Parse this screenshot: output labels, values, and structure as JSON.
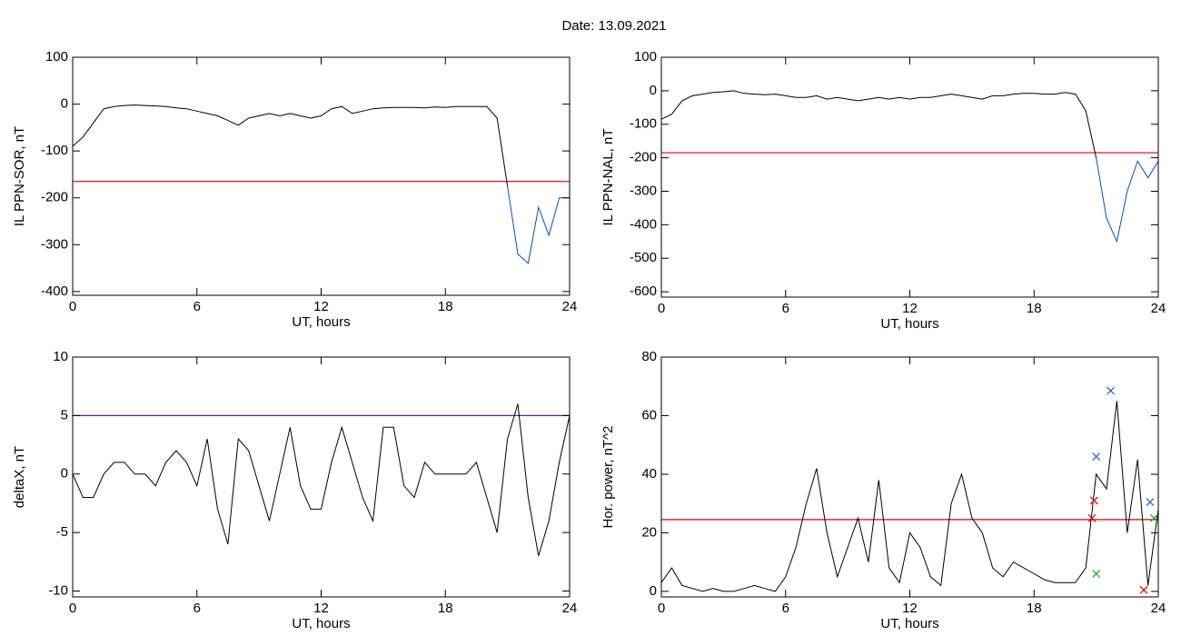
{
  "title": "Date:  13.09.2021",
  "chart_data": [
    {
      "type": "line",
      "xlabel": "UT, hours",
      "ylabel": "IL PPN-SOR, nT",
      "x": [
        0,
        0.5,
        1,
        1.5,
        2,
        2.5,
        3,
        3.5,
        4,
        4.5,
        5,
        5.5,
        6,
        6.5,
        7,
        7.5,
        8,
        8.5,
        9,
        9.5,
        10,
        10.5,
        11,
        11.5,
        12,
        12.5,
        13,
        13.5,
        14,
        14.5,
        15,
        15.5,
        16,
        16.5,
        17,
        17.5,
        18,
        18.5,
        19,
        19.5,
        20,
        20.5,
        21,
        21.5,
        22,
        22.5,
        23,
        23.5,
        24
      ],
      "series": [
        {
          "color": "#000000",
          "values": [
            -90,
            -70,
            -40,
            -10,
            -5,
            -3,
            -2,
            -3,
            -4,
            -5,
            -8,
            -10,
            -15,
            -20,
            -25,
            -35,
            -45,
            -30,
            -25,
            -20,
            -25,
            -20,
            -25,
            -30,
            -25,
            -10,
            -5,
            -20,
            -15,
            -10,
            -8,
            -7,
            -7,
            -7,
            -8,
            -6,
            -7,
            -5,
            -5,
            -5,
            -5,
            -30,
            -175,
            null,
            null,
            null,
            null,
            null,
            null
          ]
        },
        {
          "color": "#0050c8",
          "values": [
            null,
            null,
            null,
            null,
            null,
            null,
            null,
            null,
            null,
            null,
            null,
            null,
            null,
            null,
            null,
            null,
            null,
            null,
            null,
            null,
            null,
            null,
            null,
            null,
            null,
            null,
            null,
            null,
            null,
            null,
            null,
            null,
            null,
            null,
            null,
            null,
            null,
            null,
            null,
            null,
            null,
            null,
            -175,
            -320,
            -340,
            -220,
            -280,
            -200,
            -200
          ]
        }
      ],
      "hline": {
        "value": -165,
        "color": "#e00000"
      },
      "xlim": [
        0,
        24
      ],
      "xticks": [
        0,
        6,
        12,
        18,
        24
      ],
      "ylim": [
        -408,
        100
      ],
      "yticks": [
        100,
        0,
        -100,
        -200,
        -300,
        -400
      ]
    },
    {
      "type": "line",
      "xlabel": "UT, hours",
      "ylabel": "IL PPN-NAL, nT",
      "x": [
        0,
        0.5,
        1,
        1.5,
        2,
        2.5,
        3,
        3.5,
        4,
        4.5,
        5,
        5.5,
        6,
        6.5,
        7,
        7.5,
        8,
        8.5,
        9,
        9.5,
        10,
        10.5,
        11,
        11.5,
        12,
        12.5,
        13,
        13.5,
        14,
        14.5,
        15,
        15.5,
        16,
        16.5,
        17,
        17.5,
        18,
        18.5,
        19,
        19.5,
        20,
        20.5,
        21,
        21.5,
        22,
        22.5,
        23,
        23.5,
        24
      ],
      "series": [
        {
          "color": "#000000",
          "values": [
            -85,
            -70,
            -30,
            -15,
            -10,
            -5,
            -3,
            0,
            -8,
            -10,
            -12,
            -10,
            -15,
            -20,
            -20,
            -15,
            -25,
            -20,
            -25,
            -30,
            -25,
            -20,
            -25,
            -20,
            -25,
            -20,
            -20,
            -15,
            -10,
            -15,
            -20,
            -25,
            -15,
            -15,
            -10,
            -8,
            -8,
            -10,
            -10,
            -5,
            -10,
            -60,
            -200,
            null,
            null,
            null,
            null,
            null,
            null
          ]
        },
        {
          "color": "#0050c8",
          "values": [
            null,
            null,
            null,
            null,
            null,
            null,
            null,
            null,
            null,
            null,
            null,
            null,
            null,
            null,
            null,
            null,
            null,
            null,
            null,
            null,
            null,
            null,
            null,
            null,
            null,
            null,
            null,
            null,
            null,
            null,
            null,
            null,
            null,
            null,
            null,
            null,
            null,
            null,
            null,
            null,
            null,
            null,
            -200,
            -380,
            -450,
            -300,
            -210,
            -260,
            -210
          ]
        }
      ],
      "hline": {
        "value": -185,
        "color": "#e00000"
      },
      "xlim": [
        0,
        24
      ],
      "xticks": [
        0,
        6,
        12,
        18,
        24
      ],
      "ylim": [
        -616,
        100
      ],
      "yticks": [
        100,
        0,
        -100,
        -200,
        -300,
        -400,
        -500,
        -600
      ]
    },
    {
      "type": "line",
      "xlabel": "UT, hours",
      "ylabel": "deltaX, nT",
      "x": [
        0,
        0.5,
        1,
        1.5,
        2,
        2.5,
        3,
        3.5,
        4,
        4.5,
        5,
        5.5,
        6,
        6.5,
        7,
        7.5,
        8,
        8.5,
        9,
        9.5,
        10,
        10.5,
        11,
        11.5,
        12,
        12.5,
        13,
        13.5,
        14,
        14.5,
        15,
        15.5,
        16,
        16.5,
        17,
        17.5,
        18,
        18.5,
        19,
        19.5,
        20,
        20.5,
        21,
        21.5,
        22,
        22.5,
        23,
        23.5,
        24
      ],
      "series": [
        {
          "color": "#000000",
          "values": [
            0,
            -2,
            -2,
            0,
            1,
            1,
            0,
            0,
            -1,
            1,
            2,
            1,
            -1,
            3,
            -3,
            -6,
            3,
            2,
            -1,
            -4,
            0,
            4,
            -1,
            -3,
            -3,
            1,
            4,
            1,
            -2,
            -4,
            4,
            4,
            -1,
            -2,
            1,
            0,
            0,
            0,
            0,
            1,
            -2,
            -5,
            3,
            6,
            -2,
            -7,
            -4,
            1,
            5
          ]
        }
      ],
      "hline": {
        "value": 5,
        "color": "#6a1b9a"
      },
      "xlim": [
        0,
        24
      ],
      "xticks": [
        0,
        6,
        12,
        18,
        24
      ],
      "ylim": [
        -10.5,
        10
      ],
      "yticks": [
        10,
        5,
        0,
        -5,
        -10
      ]
    },
    {
      "type": "line",
      "xlabel": "UT, hours",
      "ylabel": "Hor. power, nT^2",
      "x": [
        0,
        0.5,
        1,
        1.5,
        2,
        2.5,
        3,
        3.5,
        4,
        4.5,
        5,
        5.5,
        6,
        6.5,
        7,
        7.5,
        8,
        8.5,
        9,
        9.5,
        10,
        10.5,
        11,
        11.5,
        12,
        12.5,
        13,
        13.5,
        14,
        14.5,
        15,
        15.5,
        16,
        16.5,
        17,
        17.5,
        18,
        18.5,
        19,
        19.5,
        20,
        20.5,
        21,
        21.5,
        22,
        22.5,
        23,
        23.5,
        24
      ],
      "series": [
        {
          "color": "#000000",
          "values": [
            3,
            8,
            2,
            1,
            0,
            1,
            0,
            0,
            1,
            2,
            1,
            0,
            5,
            15,
            30,
            42,
            20,
            5,
            15,
            25,
            10,
            38,
            8,
            3,
            20,
            15,
            5,
            2,
            30,
            40,
            25,
            20,
            8,
            5,
            10,
            8,
            6,
            4,
            3,
            3,
            3,
            8,
            40,
            35,
            65,
            20,
            45,
            2,
            28
          ]
        }
      ],
      "hline": {
        "value": 24.5,
        "color": "#e00000"
      },
      "markers": [
        {
          "x": 21.0,
          "y": 46,
          "color": "#1f5fd0"
        },
        {
          "x": 21.7,
          "y": 68.5,
          "color": "#1f5fd0"
        },
        {
          "x": 23.6,
          "y": 30.5,
          "color": "#1f5fd0"
        },
        {
          "x": 20.8,
          "y": 25,
          "color": "#e00000"
        },
        {
          "x": 20.9,
          "y": 31,
          "color": "#e00000"
        },
        {
          "x": 23.3,
          "y": 0.5,
          "color": "#e00000"
        },
        {
          "x": 21.0,
          "y": 6,
          "color": "#20a020"
        },
        {
          "x": 23.8,
          "y": 25,
          "color": "#20a020"
        }
      ],
      "xlim": [
        0,
        24
      ],
      "xticks": [
        0,
        6,
        12,
        18,
        24
      ],
      "ylim": [
        -1.9,
        80
      ],
      "yticks": [
        80,
        60,
        40,
        20,
        0
      ]
    }
  ]
}
